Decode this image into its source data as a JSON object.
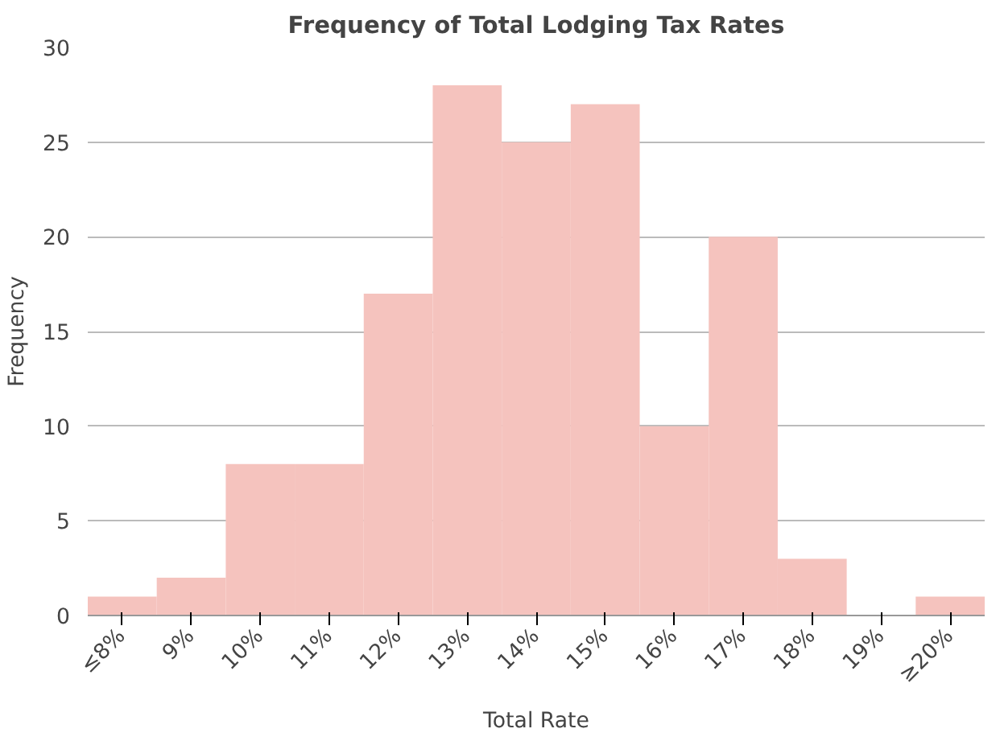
{
  "chart_data": {
    "type": "bar",
    "title": "Frequency of Total Lodging Tax Rates",
    "xlabel": "Total Rate",
    "ylabel": "Frequency",
    "categories": [
      "≤8%",
      "9%",
      "10%",
      "11%",
      "12%",
      "13%",
      "14%",
      "15%",
      "16%",
      "17%",
      "18%",
      "19%",
      "≥20%"
    ],
    "values": [
      1,
      2,
      8,
      8,
      17,
      28,
      25,
      27,
      10,
      20,
      3,
      0,
      1
    ],
    "color": "#f5c3be",
    "ylim": [
      0,
      30
    ],
    "yticks": [
      0,
      5,
      10,
      15,
      20,
      25,
      30
    ],
    "grid": "y"
  }
}
